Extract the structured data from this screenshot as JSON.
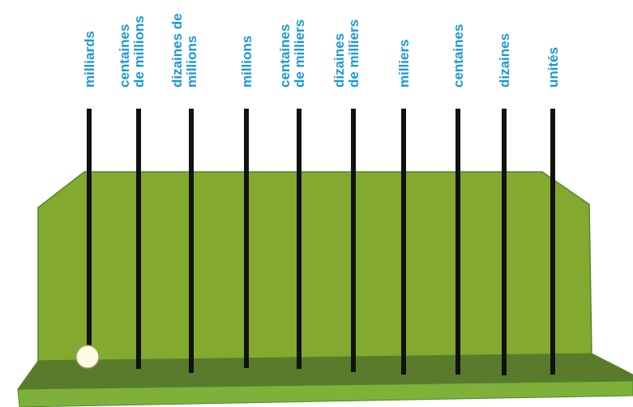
{
  "abacus": {
    "columns": [
      {
        "id": "milliards",
        "lines": [
          "milliards"
        ],
        "beads": 1
      },
      {
        "id": "centaines-de-millions",
        "lines": [
          "centaines",
          "de millions"
        ],
        "beads": 0
      },
      {
        "id": "dizaines-de-millions",
        "lines": [
          "dizaines de",
          "millions"
        ],
        "beads": 0
      },
      {
        "id": "millions",
        "lines": [
          "millions"
        ],
        "beads": 0
      },
      {
        "id": "centaines-de-milliers",
        "lines": [
          "centaines",
          "de milliers"
        ],
        "beads": 0
      },
      {
        "id": "dizaines-de-milliers",
        "lines": [
          "dizaines",
          "de milliers"
        ],
        "beads": 0
      },
      {
        "id": "milliers",
        "lines": [
          "milliers"
        ],
        "beads": 0
      },
      {
        "id": "centaines",
        "lines": [
          "centaines"
        ],
        "beads": 0
      },
      {
        "id": "dizaines",
        "lines": [
          "dizaines"
        ],
        "beads": 0
      },
      {
        "id": "unites",
        "lines": [
          "unités"
        ],
        "beads": 0
      }
    ],
    "colors": {
      "label": "#1f97d6",
      "rod": "#111111",
      "back_panel": "#84a92f",
      "back_panel_edge": "#4d8a2a",
      "base_top": "#5a7a2c",
      "base_front": "#7fb03a",
      "bead": "#fdfbe4",
      "bead_outline": "#a99f62"
    }
  }
}
